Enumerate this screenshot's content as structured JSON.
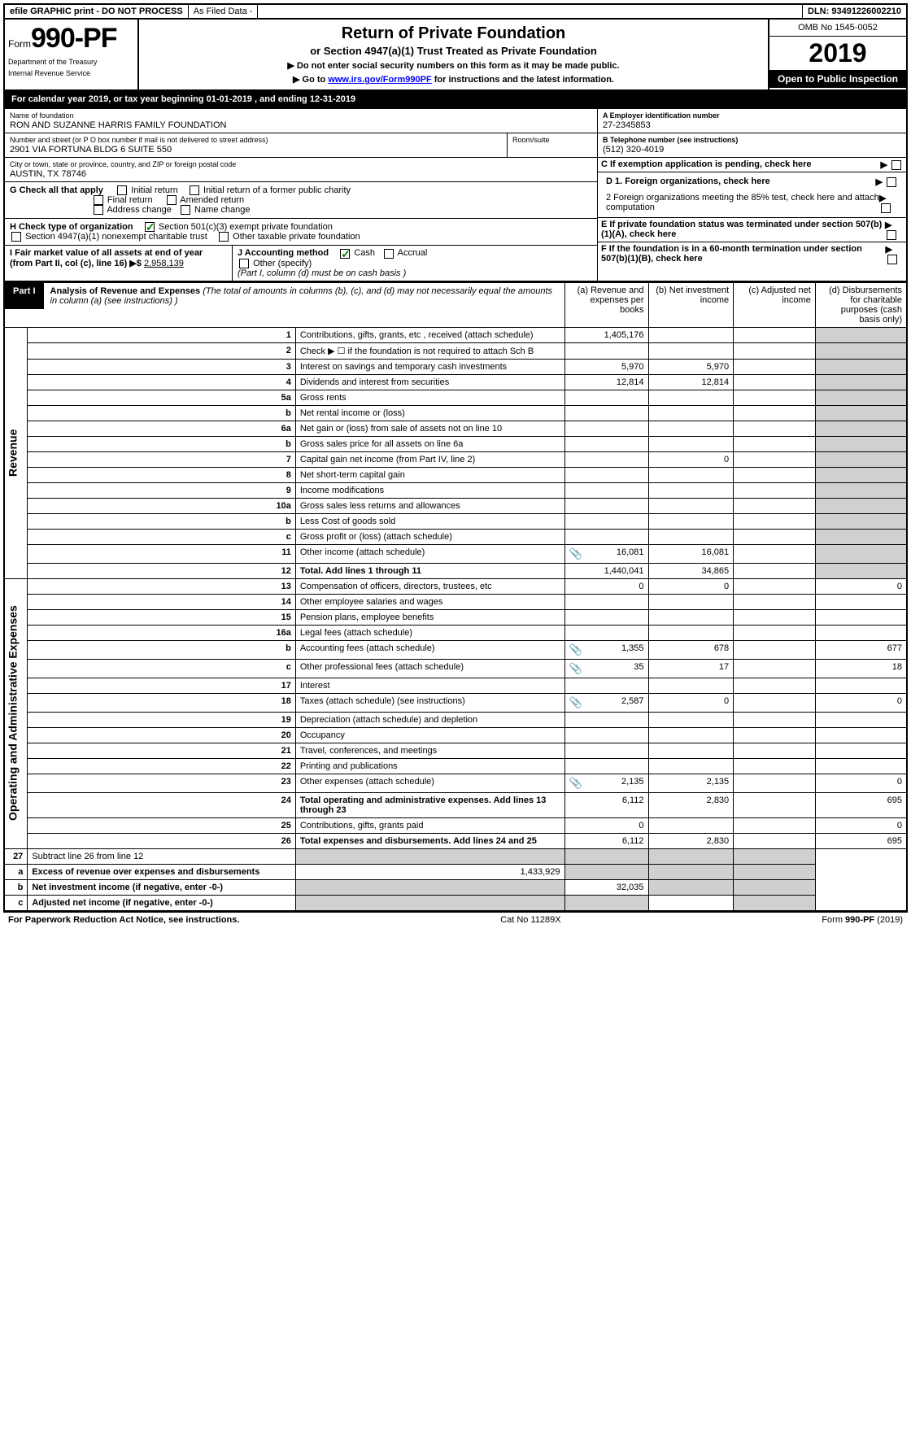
{
  "topbar": {
    "efile": "efile GRAPHIC print - DO NOT PROCESS",
    "asfiled": "As Filed Data -",
    "dln_lbl": "DLN:",
    "dln": "93491226002210"
  },
  "header": {
    "form_prefix": "Form",
    "form_no": "990-PF",
    "dept": "Department of the Treasury",
    "irs": "Internal Revenue Service",
    "title": "Return of Private Foundation",
    "subtitle": "or Section 4947(a)(1) Trust Treated as Private Foundation",
    "instr1": "▶ Do not enter social security numbers on this form as it may be made public.",
    "instr2_pre": "▶ Go to ",
    "instr2_link": "www.irs.gov/Form990PF",
    "instr2_post": " for instructions and the latest information.",
    "omb": "OMB No 1545-0052",
    "year": "2019",
    "open_public": "Open to Public Inspection"
  },
  "cal_year": {
    "pre": "For calendar year 2019, or tax year beginning ",
    "begin": "01-01-2019",
    "mid": " , and ending ",
    "end": "12-31-2019"
  },
  "name": {
    "lbl": "Name of foundation",
    "val": "RON AND SUZANNE HARRIS FAMILY FOUNDATION"
  },
  "ein": {
    "lbl": "A Employer identification number",
    "val": "27-2345853"
  },
  "addr": {
    "lbl": "Number and street (or P O  box number if mail is not delivered to street address)",
    "val": "2901 VIA FORTUNA BLDG 6 SUITE 550",
    "room_lbl": "Room/suite"
  },
  "tel": {
    "lbl": "B Telephone number (see instructions)",
    "val": "(512) 320-4019"
  },
  "city": {
    "lbl": "City or town, state or province, country, and ZIP or foreign postal code",
    "val": "AUSTIN, TX  78746"
  },
  "c_lbl": "C If exemption application is pending, check here",
  "g": {
    "lbl": "G Check all that apply",
    "opts": [
      "Initial return",
      "Initial return of a former public charity",
      "Final return",
      "Amended return",
      "Address change",
      "Name change"
    ]
  },
  "d": {
    "d1": "D 1. Foreign organizations, check here",
    "d2": "2 Foreign organizations meeting the 85% test, check here and attach computation"
  },
  "h": {
    "lbl": "H Check type of organization",
    "opt1": "Section 501(c)(3) exempt private foundation",
    "opt2": "Section 4947(a)(1) nonexempt charitable trust",
    "opt3": "Other taxable private foundation"
  },
  "e_lbl": "E  If private foundation status was terminated under section 507(b)(1)(A), check here",
  "i": {
    "lbl": "I Fair market value of all assets at end of year (from Part II, col  (c), line 16) ▶$ ",
    "val": "2,958,139"
  },
  "j": {
    "lbl": "J Accounting method",
    "cash": "Cash",
    "accrual": "Accrual",
    "other": "Other (specify)",
    "note": "(Part I, column (d) must be on cash basis )"
  },
  "f_lbl": "F  If the foundation is in a 60-month termination under section 507(b)(1)(B), check here",
  "part1": {
    "lbl": "Part I",
    "title": "Analysis of Revenue and Expenses",
    "note": " (The total of amounts in columns (b), (c), and (d) may not necessarily equal the amounts in column (a) (see instructions) )",
    "col_a": "(a) Revenue and expenses per books",
    "col_b": "(b) Net investment income",
    "col_c": "(c) Adjusted net income",
    "col_d": "(d) Disbursements for charitable purposes (cash basis only)"
  },
  "sections": {
    "revenue": "Revenue",
    "expenses": "Operating and Administrative Expenses"
  },
  "rows": [
    {
      "ln": "1",
      "desc": "Contributions, gifts, grants, etc , received (attach schedule)",
      "a": "1,405,176",
      "b": "",
      "c": "",
      "d": ""
    },
    {
      "ln": "2",
      "desc": "Check ▶ ☐ if the foundation is not required to attach Sch  B",
      "a": "",
      "b": "",
      "c": "",
      "d": ""
    },
    {
      "ln": "3",
      "desc": "Interest on savings and temporary cash investments",
      "a": "5,970",
      "b": "5,970",
      "c": "",
      "d": ""
    },
    {
      "ln": "4",
      "desc": "Dividends and interest from securities",
      "a": "12,814",
      "b": "12,814",
      "c": "",
      "d": ""
    },
    {
      "ln": "5a",
      "desc": "Gross rents",
      "a": "",
      "b": "",
      "c": "",
      "d": ""
    },
    {
      "ln": "b",
      "desc": "Net rental income or (loss)",
      "a": "",
      "b": "",
      "c": "",
      "d": ""
    },
    {
      "ln": "6a",
      "desc": "Net gain or (loss) from sale of assets not on line 10",
      "a": "",
      "b": "",
      "c": "",
      "d": ""
    },
    {
      "ln": "b",
      "desc": "Gross sales price for all assets on line 6a",
      "a": "",
      "b": "",
      "c": "",
      "d": ""
    },
    {
      "ln": "7",
      "desc": "Capital gain net income (from Part IV, line 2)",
      "a": "",
      "b": "0",
      "c": "",
      "d": ""
    },
    {
      "ln": "8",
      "desc": "Net short-term capital gain",
      "a": "",
      "b": "",
      "c": "",
      "d": ""
    },
    {
      "ln": "9",
      "desc": "Income modifications",
      "a": "",
      "b": "",
      "c": "",
      "d": ""
    },
    {
      "ln": "10a",
      "desc": "Gross sales less returns and allowances",
      "a": "",
      "b": "",
      "c": "",
      "d": ""
    },
    {
      "ln": "b",
      "desc": "Less  Cost of goods sold",
      "a": "",
      "b": "",
      "c": "",
      "d": ""
    },
    {
      "ln": "c",
      "desc": "Gross profit or (loss) (attach schedule)",
      "a": "",
      "b": "",
      "c": "",
      "d": ""
    },
    {
      "ln": "11",
      "desc": "Other income (attach schedule)",
      "a": "16,081",
      "b": "16,081",
      "c": "",
      "d": "",
      "att": true
    },
    {
      "ln": "12",
      "desc": "Total. Add lines 1 through 11",
      "a": "1,440,041",
      "b": "34,865",
      "c": "",
      "d": "",
      "bold": true
    }
  ],
  "exp_rows": [
    {
      "ln": "13",
      "desc": "Compensation of officers, directors, trustees, etc",
      "a": "0",
      "b": "0",
      "c": "",
      "d": "0"
    },
    {
      "ln": "14",
      "desc": "Other employee salaries and wages",
      "a": "",
      "b": "",
      "c": "",
      "d": ""
    },
    {
      "ln": "15",
      "desc": "Pension plans, employee benefits",
      "a": "",
      "b": "",
      "c": "",
      "d": ""
    },
    {
      "ln": "16a",
      "desc": "Legal fees (attach schedule)",
      "a": "",
      "b": "",
      "c": "",
      "d": ""
    },
    {
      "ln": "b",
      "desc": "Accounting fees (attach schedule)",
      "a": "1,355",
      "b": "678",
      "c": "",
      "d": "677",
      "att": true
    },
    {
      "ln": "c",
      "desc": "Other professional fees (attach schedule)",
      "a": "35",
      "b": "17",
      "c": "",
      "d": "18",
      "att": true
    },
    {
      "ln": "17",
      "desc": "Interest",
      "a": "",
      "b": "",
      "c": "",
      "d": ""
    },
    {
      "ln": "18",
      "desc": "Taxes (attach schedule) (see instructions)",
      "a": "2,587",
      "b": "0",
      "c": "",
      "d": "0",
      "att": true
    },
    {
      "ln": "19",
      "desc": "Depreciation (attach schedule) and depletion",
      "a": "",
      "b": "",
      "c": "",
      "d": ""
    },
    {
      "ln": "20",
      "desc": "Occupancy",
      "a": "",
      "b": "",
      "c": "",
      "d": ""
    },
    {
      "ln": "21",
      "desc": "Travel, conferences, and meetings",
      "a": "",
      "b": "",
      "c": "",
      "d": ""
    },
    {
      "ln": "22",
      "desc": "Printing and publications",
      "a": "",
      "b": "",
      "c": "",
      "d": ""
    },
    {
      "ln": "23",
      "desc": "Other expenses (attach schedule)",
      "a": "2,135",
      "b": "2,135",
      "c": "",
      "d": "0",
      "att": true
    },
    {
      "ln": "24",
      "desc": "Total operating and administrative expenses. Add lines 13 through 23",
      "a": "6,112",
      "b": "2,830",
      "c": "",
      "d": "695",
      "bold": true
    },
    {
      "ln": "25",
      "desc": "Contributions, gifts, grants paid",
      "a": "0",
      "b": "",
      "c": "",
      "d": "0"
    },
    {
      "ln": "26",
      "desc": "Total expenses and disbursements. Add lines 24 and 25",
      "a": "6,112",
      "b": "2,830",
      "c": "",
      "d": "695",
      "bold": true
    }
  ],
  "net_rows": [
    {
      "ln": "27",
      "desc": "Subtract line 26 from line 12",
      "a": "",
      "b": "",
      "c": "",
      "d": ""
    },
    {
      "ln": "a",
      "desc": "Excess of revenue over expenses and disbursements",
      "a": "1,433,929",
      "b": "",
      "c": "",
      "d": "",
      "bold": true
    },
    {
      "ln": "b",
      "desc": "Net investment income (if negative, enter -0-)",
      "a": "",
      "b": "32,035",
      "c": "",
      "d": "",
      "bold": true
    },
    {
      "ln": "c",
      "desc": "Adjusted net income (if negative, enter -0-)",
      "a": "",
      "b": "",
      "c": "",
      "d": "",
      "bold": true
    }
  ],
  "footer": {
    "left": "For Paperwork Reduction Act Notice, see instructions.",
    "mid": "Cat  No  11289X",
    "right": "Form 990-PF (2019)"
  }
}
